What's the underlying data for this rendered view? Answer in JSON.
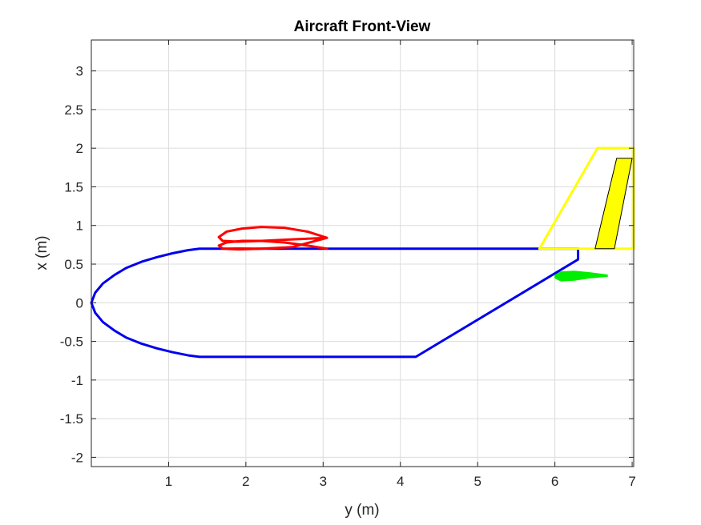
{
  "chart_data": {
    "type": "line",
    "title": "Aircraft Front-View",
    "xlabel": "y (m)",
    "ylabel": "x (m)",
    "xlim": [
      0,
      7.02
    ],
    "ylim": [
      -2.12,
      3.4
    ],
    "grid": true,
    "box": true,
    "xticks": [
      1,
      2,
      3,
      4,
      5,
      6,
      7
    ],
    "xtick_labels": [
      "1",
      "2",
      "3",
      "4",
      "5",
      "6",
      "7"
    ],
    "yticks": [
      -2,
      -1.5,
      -1,
      -0.5,
      0,
      0.5,
      1,
      1.5,
      2,
      2.5,
      3
    ],
    "ytick_labels": [
      "-2",
      "-1.5",
      "-1",
      "-0.5",
      "0",
      "0.5",
      "1",
      "1.5",
      "2",
      "2.5",
      "3"
    ],
    "colors": {
      "fuselage": "#0000ee",
      "wing": "#ff0000",
      "vertical_tail": "#ffff00",
      "rudder": "#ffff00",
      "rudder_edge": "#000000",
      "horizontal_tail": "#00ee00",
      "grid": "#dcdcdc",
      "axes": "#262626"
    },
    "series": [
      {
        "key": "fuselage",
        "kind": "line",
        "x": [
          1.4,
          1.25,
          1.05,
          0.85,
          0.65,
          0.45,
          0.3,
          0.15,
          0.05,
          0.0,
          0.05,
          0.15,
          0.3,
          0.45,
          0.65,
          0.85,
          1.05,
          1.25,
          1.4,
          4.2,
          6.3,
          6.3,
          6.3,
          1.4
        ],
        "y": [
          0.7,
          0.68,
          0.64,
          0.59,
          0.53,
          0.45,
          0.36,
          0.25,
          0.13,
          0.0,
          -0.13,
          -0.25,
          -0.36,
          -0.45,
          -0.53,
          -0.59,
          -0.64,
          -0.68,
          -0.7,
          -0.7,
          0.56,
          0.7,
          0.7,
          0.7
        ]
      },
      {
        "key": "wing",
        "kind": "line",
        "x": [
          3.05,
          2.8,
          2.5,
          2.2,
          1.95,
          1.75,
          1.65,
          1.7,
          1.9,
          2.2,
          2.6,
          3.05,
          2.6,
          2.2,
          1.9,
          1.7,
          1.65,
          1.75,
          1.95,
          2.2,
          2.5,
          2.8,
          3.05
        ],
        "y": [
          0.84,
          0.92,
          0.97,
          0.98,
          0.96,
          0.92,
          0.85,
          0.8,
          0.79,
          0.8,
          0.82,
          0.84,
          0.72,
          0.7,
          0.69,
          0.7,
          0.74,
          0.78,
          0.8,
          0.8,
          0.78,
          0.74,
          0.7
        ]
      },
      {
        "key": "vertical_tail",
        "kind": "line",
        "x": [
          5.8,
          6.55,
          7.02,
          7.02,
          5.8
        ],
        "y": [
          0.7,
          2.0,
          2.0,
          0.7,
          0.7
        ]
      },
      {
        "key": "rudder",
        "kind": "polygon",
        "x": [
          6.52,
          6.77,
          7.0,
          6.8,
          6.52
        ],
        "y": [
          0.7,
          0.7,
          1.87,
          1.87,
          0.7
        ]
      },
      {
        "key": "horizontal_tail",
        "kind": "polygon",
        "x": [
          6.0,
          6.08,
          6.25,
          6.45,
          6.68,
          6.68,
          6.45,
          6.25,
          6.08,
          6.0
        ],
        "y": [
          0.36,
          0.4,
          0.41,
          0.39,
          0.36,
          0.34,
          0.32,
          0.29,
          0.28,
          0.32
        ]
      }
    ]
  }
}
